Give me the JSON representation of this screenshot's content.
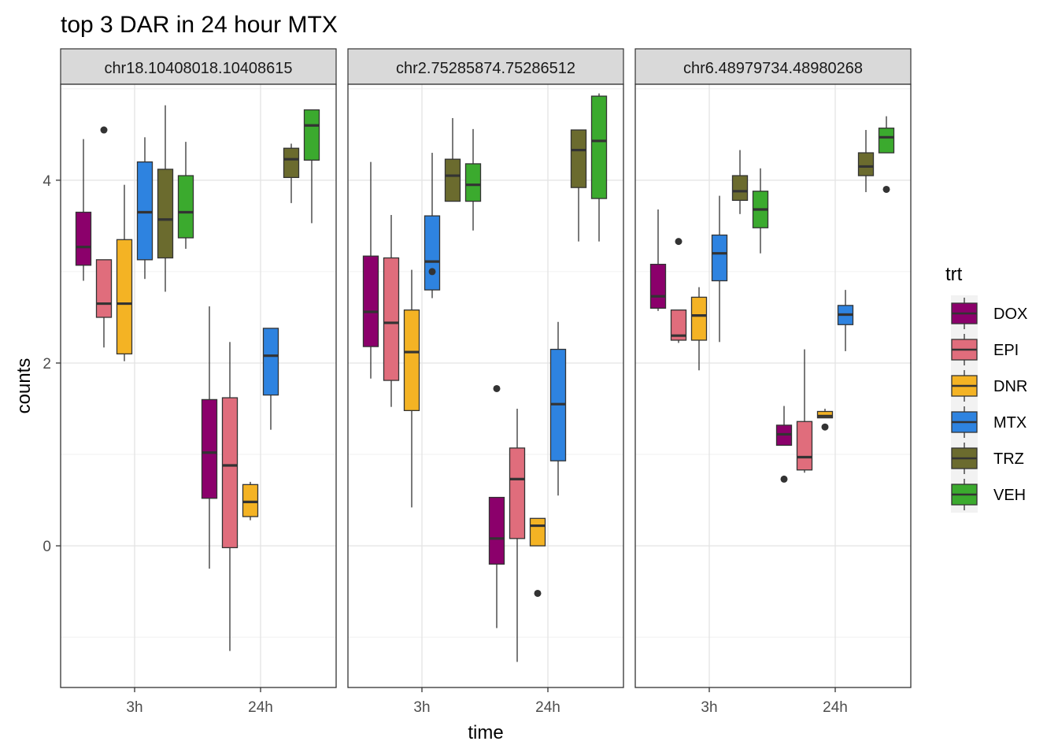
{
  "chart_data": {
    "type": "boxplot",
    "title": "top 3 DAR in 24 hour MTX",
    "xlabel": "time",
    "ylabel": "counts",
    "categories": [
      "3h",
      "24h"
    ],
    "ylim": [
      -1.55,
      5.05
    ],
    "yticks": [
      0,
      2,
      4
    ],
    "grid": true,
    "legend": {
      "title": "trt",
      "position": "right",
      "entries": [
        {
          "label": "DOX",
          "color": "#8B006B"
        },
        {
          "label": "EPI",
          "color": "#E06D7C"
        },
        {
          "label": "DNR",
          "color": "#F4B324"
        },
        {
          "label": "MTX",
          "color": "#2E83E0"
        },
        {
          "label": "TRZ",
          "color": "#6B6B2E"
        },
        {
          "label": "VEH",
          "color": "#3BAA2E"
        }
      ]
    },
    "panels": [
      {
        "label": "chr18.10408018.10408615",
        "groups": {
          "3h": [
            {
              "trt": "DOX",
              "min": 2.9,
              "q1": 3.07,
              "median": 3.27,
              "q3": 3.65,
              "max": 4.45,
              "outliers": []
            },
            {
              "trt": "EPI",
              "min": 2.17,
              "q1": 2.5,
              "median": 2.65,
              "q3": 3.13,
              "max": 3.13,
              "outliers": [
                4.55
              ]
            },
            {
              "trt": "DNR",
              "min": 2.02,
              "q1": 2.1,
              "median": 2.65,
              "q3": 3.35,
              "max": 3.95,
              "outliers": []
            },
            {
              "trt": "MTX",
              "min": 2.92,
              "q1": 3.13,
              "median": 3.65,
              "q3": 4.2,
              "max": 4.47,
              "outliers": []
            },
            {
              "trt": "TRZ",
              "min": 2.78,
              "q1": 3.15,
              "median": 3.57,
              "q3": 4.12,
              "max": 4.82,
              "outliers": []
            },
            {
              "trt": "VEH",
              "min": 3.25,
              "q1": 3.37,
              "median": 3.65,
              "q3": 4.05,
              "max": 4.42,
              "outliers": []
            }
          ],
          "24h": [
            {
              "trt": "DOX",
              "min": -0.25,
              "q1": 0.52,
              "median": 1.02,
              "q3": 1.6,
              "max": 2.62,
              "outliers": []
            },
            {
              "trt": "EPI",
              "min": -1.15,
              "q1": -0.02,
              "median": 0.88,
              "q3": 1.62,
              "max": 2.23,
              "outliers": []
            },
            {
              "trt": "DNR",
              "min": 0.28,
              "q1": 0.32,
              "median": 0.48,
              "q3": 0.67,
              "max": 0.7,
              "outliers": []
            },
            {
              "trt": "MTX",
              "min": 1.27,
              "q1": 1.65,
              "median": 2.08,
              "q3": 2.38,
              "max": 2.38,
              "outliers": []
            },
            {
              "trt": "TRZ",
              "min": 3.75,
              "q1": 4.03,
              "median": 4.23,
              "q3": 4.35,
              "max": 4.4,
              "outliers": []
            },
            {
              "trt": "VEH",
              "min": 3.53,
              "q1": 4.22,
              "median": 4.6,
              "q3": 4.77,
              "max": 4.77,
              "outliers": []
            }
          ]
        }
      },
      {
        "label": "chr2.75285874.75286512",
        "groups": {
          "3h": [
            {
              "trt": "DOX",
              "min": 1.83,
              "q1": 2.18,
              "median": 2.56,
              "q3": 3.17,
              "max": 4.2,
              "outliers": []
            },
            {
              "trt": "EPI",
              "min": 1.52,
              "q1": 1.81,
              "median": 2.44,
              "q3": 3.15,
              "max": 3.62,
              "outliers": []
            },
            {
              "trt": "DNR",
              "min": 0.42,
              "q1": 1.48,
              "median": 2.12,
              "q3": 2.58,
              "max": 3.02,
              "outliers": []
            },
            {
              "trt": "MTX",
              "min": 2.71,
              "q1": 2.8,
              "median": 3.11,
              "q3": 3.61,
              "max": 4.3,
              "outliers": [
                3.0
              ]
            },
            {
              "trt": "TRZ",
              "min": 3.77,
              "q1": 3.77,
              "median": 4.05,
              "q3": 4.23,
              "max": 4.68,
              "outliers": []
            },
            {
              "trt": "VEH",
              "min": 3.45,
              "q1": 3.77,
              "median": 3.95,
              "q3": 4.18,
              "max": 4.56,
              "outliers": []
            }
          ],
          "24h": [
            {
              "trt": "DOX",
              "min": -0.9,
              "q1": -0.2,
              "median": 0.08,
              "q3": 0.53,
              "max": 0.53,
              "outliers": [
                1.72
              ]
            },
            {
              "trt": "EPI",
              "min": -1.27,
              "q1": 0.08,
              "median": 0.73,
              "q3": 1.07,
              "max": 1.5,
              "outliers": []
            },
            {
              "trt": "DNR",
              "min": 0.0,
              "q1": 0.0,
              "median": 0.22,
              "q3": 0.3,
              "max": 0.3,
              "outliers": [
                -0.52
              ]
            },
            {
              "trt": "MTX",
              "min": 0.55,
              "q1": 0.93,
              "median": 1.55,
              "q3": 2.15,
              "max": 2.45,
              "outliers": []
            },
            {
              "trt": "TRZ",
              "min": 3.33,
              "q1": 3.92,
              "median": 4.33,
              "q3": 4.55,
              "max": 4.55,
              "outliers": []
            },
            {
              "trt": "VEH",
              "min": 3.33,
              "q1": 3.8,
              "median": 4.43,
              "q3": 4.92,
              "max": 4.95,
              "outliers": []
            }
          ]
        }
      },
      {
        "label": "chr6.48979734.48980268",
        "groups": {
          "3h": [
            {
              "trt": "DOX",
              "min": 2.57,
              "q1": 2.6,
              "median": 2.73,
              "q3": 3.08,
              "max": 3.68,
              "outliers": []
            },
            {
              "trt": "EPI",
              "min": 2.22,
              "q1": 2.25,
              "median": 2.3,
              "q3": 2.58,
              "max": 2.58,
              "outliers": [
                3.33
              ]
            },
            {
              "trt": "DNR",
              "min": 1.92,
              "q1": 2.25,
              "median": 2.52,
              "q3": 2.72,
              "max": 2.83,
              "outliers": []
            },
            {
              "trt": "MTX",
              "min": 2.23,
              "q1": 2.9,
              "median": 3.2,
              "q3": 3.4,
              "max": 3.83,
              "outliers": []
            },
            {
              "trt": "TRZ",
              "min": 3.63,
              "q1": 3.78,
              "median": 3.88,
              "q3": 4.05,
              "max": 4.33,
              "outliers": []
            },
            {
              "trt": "VEH",
              "min": 3.2,
              "q1": 3.48,
              "median": 3.68,
              "q3": 3.88,
              "max": 4.13,
              "outliers": []
            }
          ],
          "24h": [
            {
              "trt": "DOX",
              "min": 1.1,
              "q1": 1.1,
              "median": 1.22,
              "q3": 1.32,
              "max": 1.53,
              "outliers": [
                0.73
              ]
            },
            {
              "trt": "EPI",
              "min": 0.8,
              "q1": 0.83,
              "median": 0.97,
              "q3": 1.36,
              "max": 2.15,
              "outliers": []
            },
            {
              "trt": "DNR",
              "min": 1.4,
              "q1": 1.4,
              "median": 1.42,
              "q3": 1.47,
              "max": 1.5,
              "outliers": [
                1.3
              ]
            },
            {
              "trt": "MTX",
              "min": 2.13,
              "q1": 2.42,
              "median": 2.53,
              "q3": 2.63,
              "max": 2.8,
              "outliers": []
            },
            {
              "trt": "TRZ",
              "min": 3.87,
              "q1": 4.05,
              "median": 4.15,
              "q3": 4.3,
              "max": 4.55,
              "outliers": []
            },
            {
              "trt": "VEH",
              "min": 4.3,
              "q1": 4.3,
              "median": 4.47,
              "q3": 4.57,
              "max": 4.7,
              "outliers": [
                3.9
              ]
            }
          ]
        }
      }
    ]
  }
}
